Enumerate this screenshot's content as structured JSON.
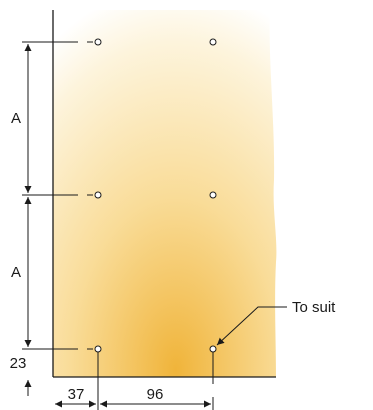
{
  "labels": {
    "a_upper": "A",
    "a_lower": "A",
    "dim_23": "23",
    "dim_37": "37",
    "dim_96": "96",
    "to_suit": "To suit"
  },
  "colors": {
    "panel_light": "#fdfaf0",
    "panel_mid": "#f9dc98",
    "panel_dark": "#f0b43a",
    "line": "#1a1a1a"
  }
}
